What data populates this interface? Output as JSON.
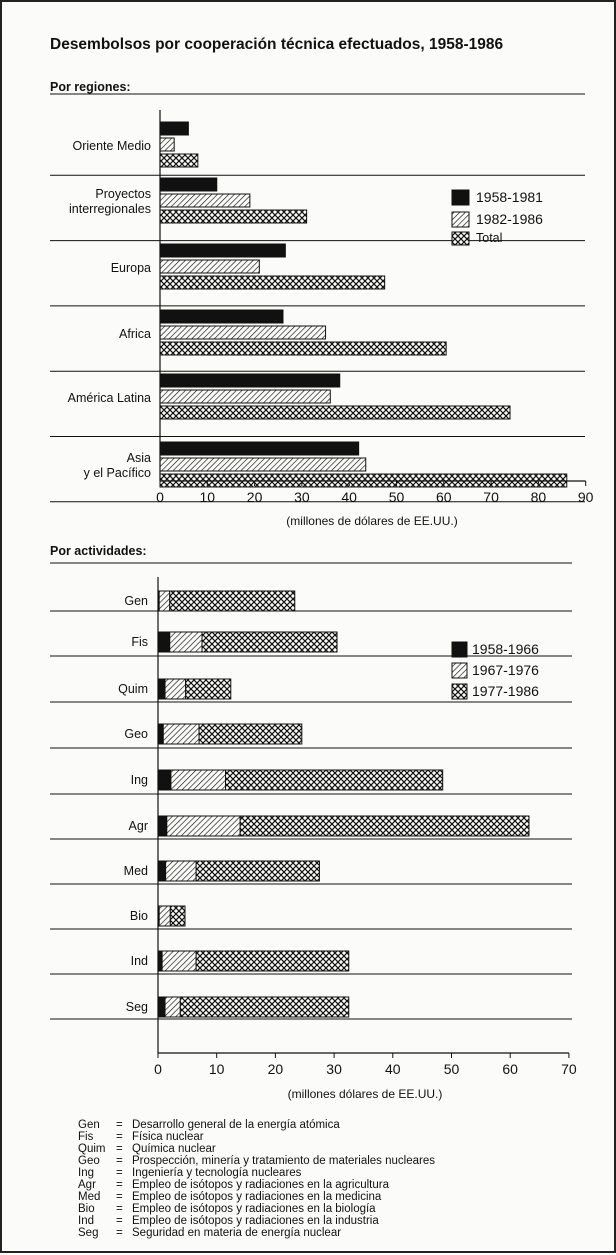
{
  "title": "Desembolsos por cooperación técnica efectuados, 1958-1986",
  "colors": {
    "ink": "#111111",
    "paper": "#fbfbf9"
  },
  "chart_data": [
    {
      "type": "bar",
      "orientation": "horizontal",
      "title": "Por regiones:",
      "xlabel": "(millones de dólares de EE.UU.)",
      "xlim": [
        0,
        90
      ],
      "xticks": [
        "0",
        "10",
        "20",
        "30",
        "40",
        "50",
        "60",
        "70",
        "80",
        "90"
      ],
      "legend_position": "right",
      "categories": [
        "Oriente Medio",
        "Proyectos interregionales",
        "Europa",
        "Africa",
        "América Latina",
        "Asia y el Pacífico"
      ],
      "category_lines": [
        [
          "Oriente Medio"
        ],
        [
          "Proyectos",
          "interregionales"
        ],
        [
          "Europa"
        ],
        [
          "Africa"
        ],
        [
          "América Latina"
        ],
        [
          "Asia",
          "y el Pacífico"
        ]
      ],
      "series": [
        {
          "name": "1958-1981",
          "pattern": "solid",
          "values": [
            6,
            12,
            26.5,
            26,
            38,
            42
          ]
        },
        {
          "name": "1982-1986",
          "pattern": "hatch",
          "values": [
            3,
            19,
            21,
            35,
            36,
            43.5
          ]
        },
        {
          "name": "Total",
          "pattern": "cross",
          "values": [
            8,
            31,
            47.5,
            60.5,
            74,
            86
          ]
        }
      ]
    },
    {
      "type": "bar",
      "orientation": "horizontal",
      "stacked": true,
      "title": "Por actividades:",
      "xlabel": "(millones dólares de EE.UU.)",
      "xlim": [
        0,
        70
      ],
      "xticks": [
        "0",
        "10",
        "20",
        "30",
        "40",
        "50",
        "60",
        "70"
      ],
      "legend_position": "right",
      "categories": [
        "Gen",
        "Fis",
        "Quim",
        "Geo",
        "Ing",
        "Agr",
        "Med",
        "Bio",
        "Ind",
        "Seg"
      ],
      "series": [
        {
          "name": "1958-1966",
          "pattern": "solid",
          "values": [
            0.2,
            2,
            1.2,
            0.9,
            2.2,
            1.5,
            1.3,
            0.2,
            0.7,
            1.2
          ]
        },
        {
          "name": "1967-1976",
          "pattern": "hatch",
          "values": [
            1.8,
            5.5,
            3.5,
            6.1,
            9.3,
            12.5,
            5.2,
            1.9,
            5.8,
            2.6
          ]
        },
        {
          "name": "1977-1986",
          "pattern": "cross",
          "values": [
            21.3,
            23,
            7.7,
            17.5,
            37,
            49.2,
            21,
            2.5,
            26,
            28.7
          ]
        }
      ],
      "glossary": [
        {
          "abbr": "Gen",
          "eq": "=",
          "desc": "Desarrollo general de la energía atómica"
        },
        {
          "abbr": "Fis",
          "eq": "=",
          "desc": "Física nuclear"
        },
        {
          "abbr": "Quim",
          "eq": "=",
          "desc": "Química nuclear"
        },
        {
          "abbr": "Geo",
          "eq": "=",
          "desc": "Prospección, minería y tratamiento de materiales nucleares"
        },
        {
          "abbr": "Ing",
          "eq": "=",
          "desc": "Ingeniería y tecnología nucleares"
        },
        {
          "abbr": "Agr",
          "eq": "=",
          "desc": "Empleo de isótopos y radiaciones en la agricultura"
        },
        {
          "abbr": "Med",
          "eq": "=",
          "desc": "Empleo de isótopos y radiaciones en la medicina"
        },
        {
          "abbr": "Bio",
          "eq": "=",
          "desc": "Empleo de isótopos y radiaciones en la biología"
        },
        {
          "abbr": "Ind",
          "eq": "=",
          "desc": "Empleo de isótopos y radiaciones en la industria"
        },
        {
          "abbr": "Seg",
          "eq": "=",
          "desc": "Seguridad en materia de energía nuclear"
        }
      ]
    }
  ]
}
